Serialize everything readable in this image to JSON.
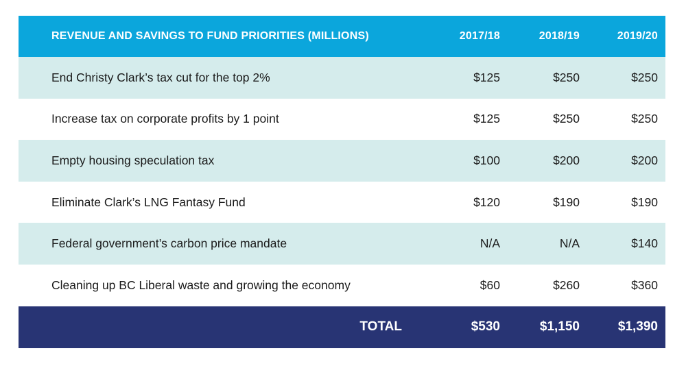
{
  "header": {
    "title": "REVENUE AND SAVINGS TO FUND PRIORITIES (MILLIONS)",
    "years": [
      "2017/18",
      "2018/19",
      "2019/20"
    ]
  },
  "rows": [
    {
      "label": "End Christy Clark’s tax cut for the top 2%",
      "values": [
        "$125",
        "$250",
        "$250"
      ]
    },
    {
      "label": "Increase tax on corporate profits by 1 point",
      "values": [
        "$125",
        "$250",
        "$250"
      ]
    },
    {
      "label": "Empty housing speculation tax",
      "values": [
        "$100",
        "$200",
        "$200"
      ]
    },
    {
      "label": "Eliminate Clark’s LNG Fantasy Fund",
      "values": [
        "$120",
        "$190",
        "$190"
      ]
    },
    {
      "label": "Federal government’s carbon price mandate",
      "values": [
        "N/A",
        "N/A",
        "$140"
      ]
    },
    {
      "label": "Cleaning up BC Liberal waste and growing the economy",
      "values": [
        "$60",
        "$260",
        "$360"
      ]
    }
  ],
  "total": {
    "label": "TOTAL",
    "values": [
      "$530",
      "$1,150",
      "$1,390"
    ]
  },
  "colors": {
    "header_bg": "#0ba6dc",
    "shaded_row_bg": "#d5ecec",
    "total_bg": "#283474"
  }
}
